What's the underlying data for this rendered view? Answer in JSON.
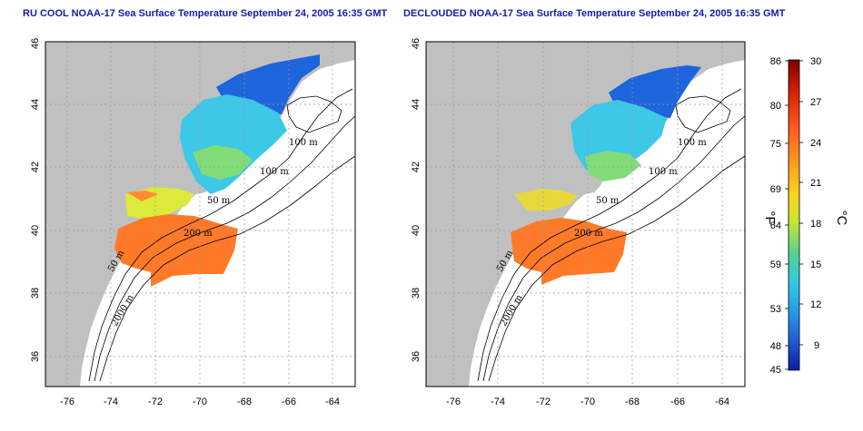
{
  "titles": {
    "left": "RU COOL NOAA-17 Sea Surface Temperature September 24, 2005 16:35 GMT",
    "right": "DECLOUDED NOAA-17 Sea Surface Temperature September 24, 2005 16:35 GMT"
  },
  "map": {
    "lon_range": [
      -77,
      -63
    ],
    "lat_range": [
      35,
      46
    ],
    "lon_ticks": [
      "-76",
      "-74",
      "-72",
      "-70",
      "-68",
      "-66",
      "-64"
    ],
    "lat_ticks": [
      "36",
      "38",
      "40",
      "42",
      "44",
      "46"
    ],
    "grid": "dotted",
    "land_color": "#c0c0c0",
    "ocean_no_data_color": "#ffffff"
  },
  "contours": {
    "left": [
      "100 m",
      "100 m",
      "50 m",
      "200 m",
      "50 m",
      "2000 m"
    ],
    "right": [
      "100 m",
      "100 m",
      "50 m",
      "200 m",
      "50 m",
      "2000 m"
    ]
  },
  "colorbar": {
    "celsius_ticks": [
      "30",
      "27",
      "24",
      "21",
      "18",
      "15",
      "12",
      "9"
    ],
    "fahrenheit_ticks": [
      "86",
      "80",
      "75",
      "69",
      "64",
      "59",
      "53",
      "48",
      "45"
    ],
    "unit_f": "°F",
    "unit_c": "°C",
    "colors": [
      "#7a0000",
      "#d42000",
      "#ff5a1e",
      "#ff9a1e",
      "#ffd21e",
      "#c8e632",
      "#5ad28c",
      "#32c8e6",
      "#2896e6",
      "#1e5ad2",
      "#0a1ea0"
    ]
  }
}
